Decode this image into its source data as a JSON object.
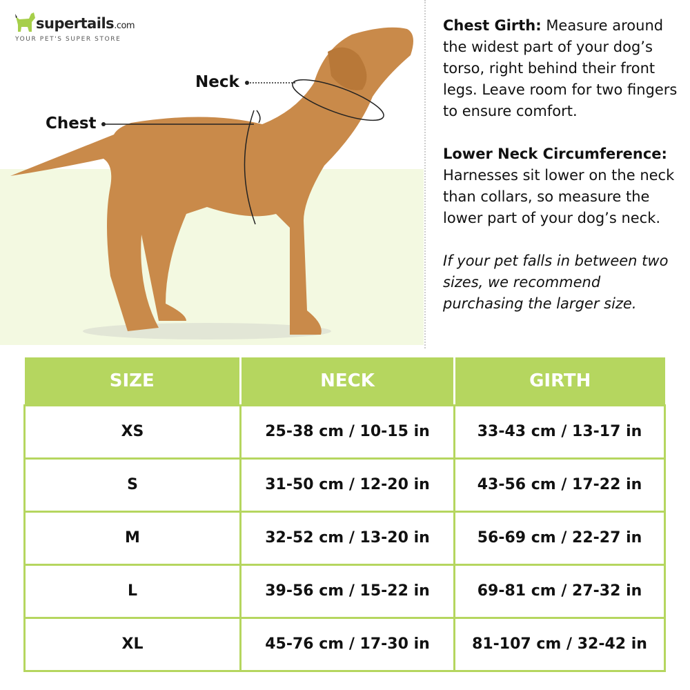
{
  "brand": {
    "name": "supertails",
    "suffix": ".com",
    "tagline": "YOUR PET'S SUPER STORE"
  },
  "diagram": {
    "labels": {
      "neck": "Neck",
      "chest": "Chest"
    }
  },
  "info": {
    "chest_title": "Chest Girth:",
    "chest_text": " Measure around the widest part of your dog’s torso, right behind their front legs. Leave room for two fingers to ensure comfort.",
    "neck_title": "Lower Neck Circumference:",
    "neck_text": " Harnesses sit lower on the neck than collars, so measure the lower part of your dog’s neck.",
    "note": "If your pet falls in between two sizes, we recommend purchasing the larger size."
  },
  "colors": {
    "accent": "#b5d65f",
    "background_tint": "#f3f9e1",
    "dog": "#c98a4a"
  },
  "table": {
    "headers": [
      "SIZE",
      "NECK",
      "GIRTH"
    ],
    "rows": [
      [
        "XS",
        "25-38 cm / 10-15 in",
        "33-43 cm / 13-17 in"
      ],
      [
        "S",
        "31-50 cm / 12-20 in",
        "43-56 cm / 17-22 in"
      ],
      [
        "M",
        "32-52 cm / 13-20 in",
        "56-69 cm / 22-27 in"
      ],
      [
        "L",
        "39-56 cm / 15-22 in",
        "69-81 cm / 27-32 in"
      ],
      [
        "XL",
        "45-76 cm / 17-30 in",
        "81-107 cm / 32-42 in"
      ]
    ]
  }
}
